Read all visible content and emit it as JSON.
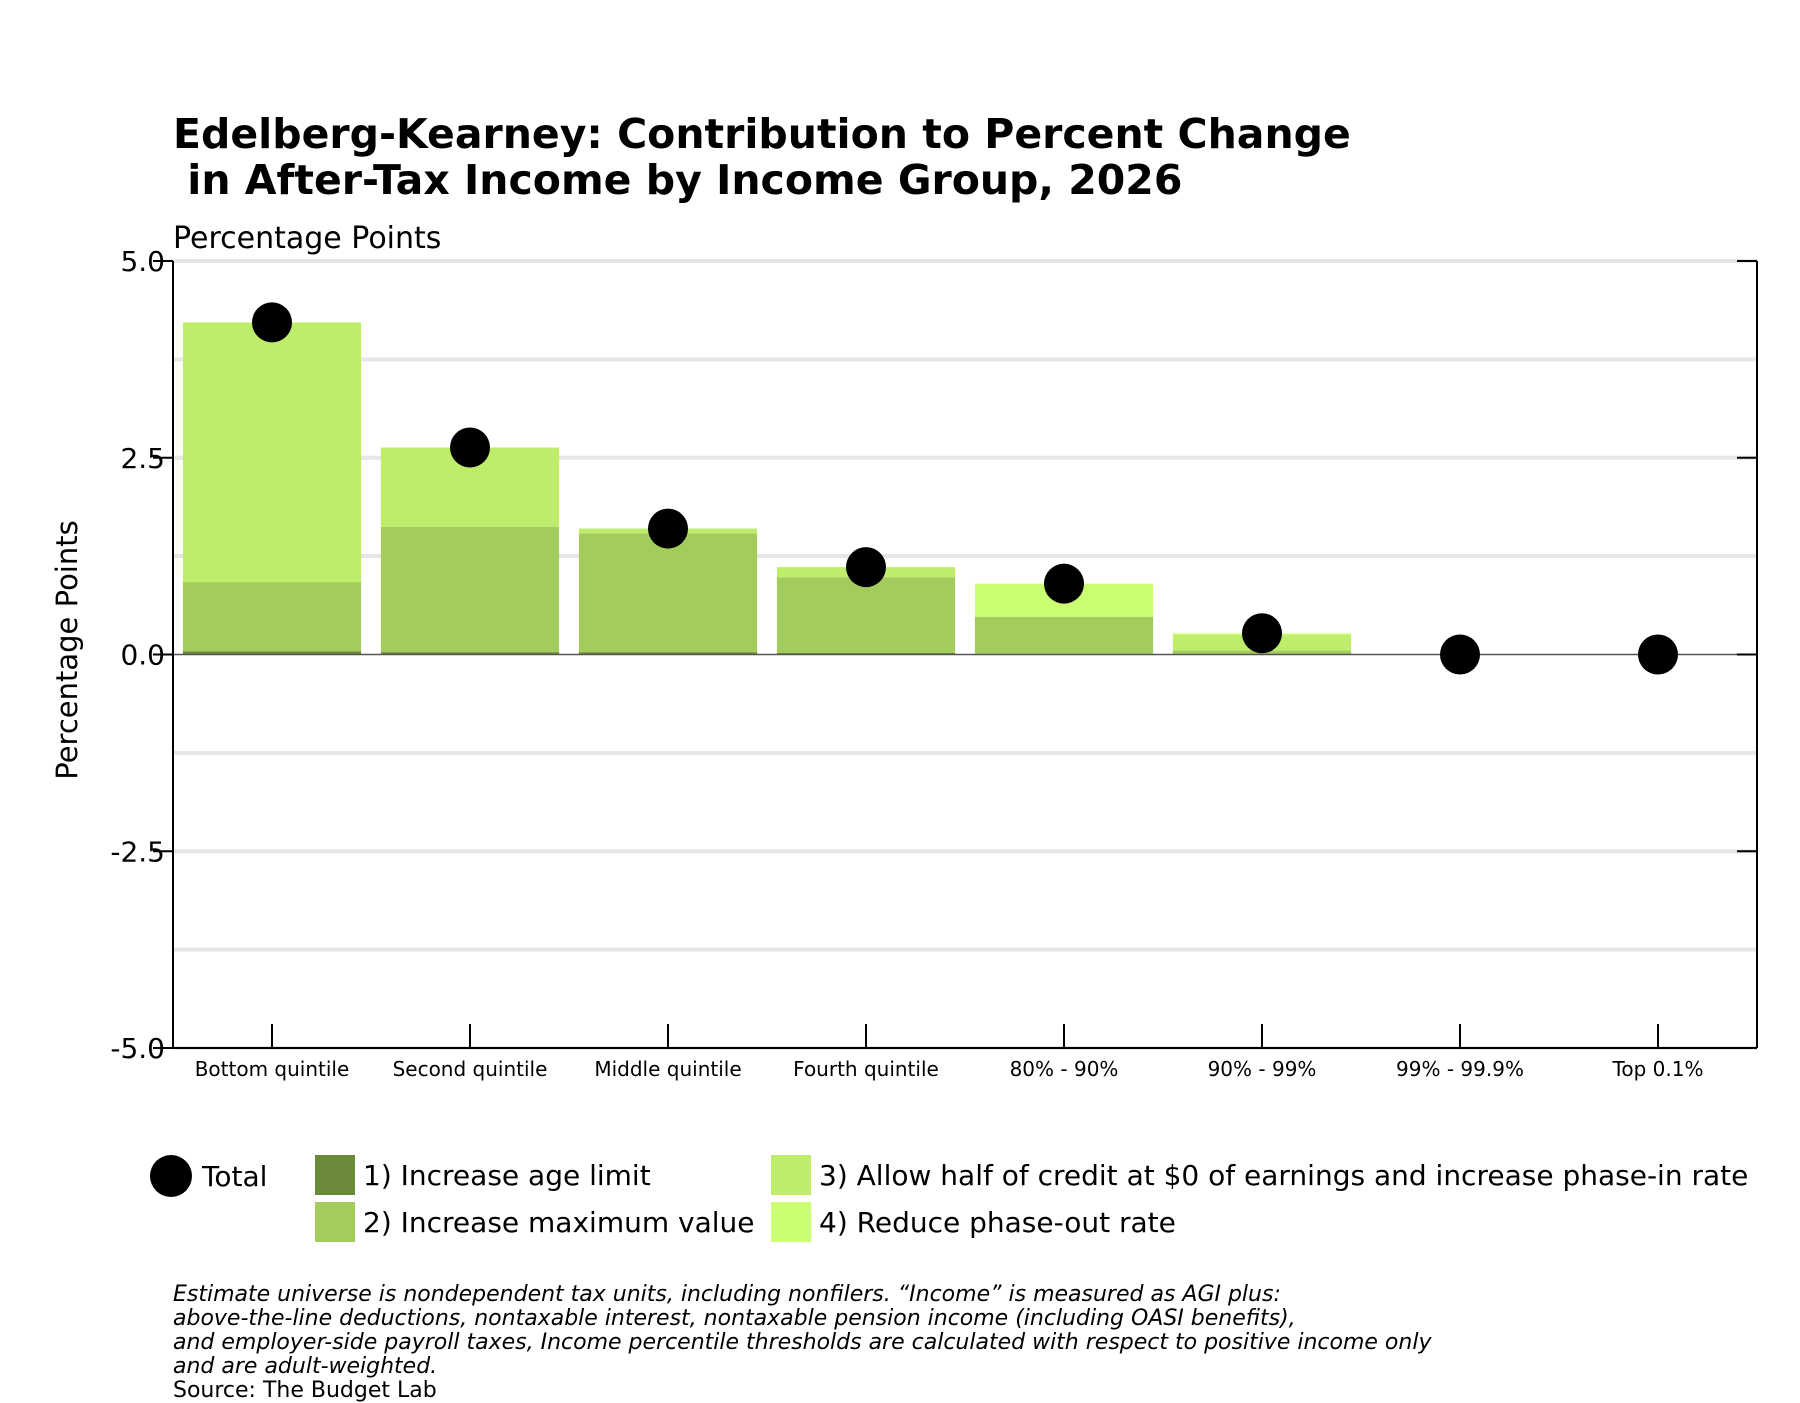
{
  "title": "Edelberg-Kearney: Contribution to Percent Change\n in After-Tax Income by Income Group, 2026",
  "subtitle": "Percentage Points",
  "chart_data": {
    "type": "bar",
    "stacked": true,
    "ylabel": "Percentage Points",
    "xlabel": "",
    "ylim": [
      -5.0,
      5.0
    ],
    "yticks": [
      "5.0",
      "2.5",
      "0.0",
      "-2.5",
      "-5.0"
    ],
    "grid": true,
    "legend_position": "bottom",
    "categories": [
      "Bottom quintile",
      "Second quintile",
      "Middle quintile",
      "Fourth quintile",
      "80% - 90%",
      "90% - 99%",
      "99% - 99.9%",
      "Top 0.1%"
    ],
    "series": [
      {
        "name": "1) Increase age limit",
        "color": "#6b8a3a",
        "values": [
          0.04,
          0.03,
          0.03,
          0.02,
          0.01,
          0.01,
          0.0,
          0.0
        ]
      },
      {
        "name": "2) Increase maximum value",
        "color": "#a3cc5c",
        "values": [
          0.88,
          1.59,
          1.51,
          0.96,
          0.47,
          0.04,
          0.0,
          0.0
        ]
      },
      {
        "name": "3) Allow half of credit at $0 of earnings and increase phase-in rate",
        "color": "#bded6b",
        "values": [
          3.3,
          1.01,
          0.06,
          0.13,
          0.0,
          0.2,
          0.0,
          0.0
        ]
      },
      {
        "name": "4) Reduce phase-out rate",
        "color": "#cbff73",
        "values": [
          0.0,
          0.0,
          0.0,
          0.0,
          0.42,
          0.02,
          0.0,
          0.0
        ]
      }
    ],
    "total": {
      "name": "Total",
      "values": [
        4.22,
        2.63,
        1.6,
        1.11,
        0.9,
        0.27,
        0.0,
        0.0
      ]
    }
  },
  "notes": {
    "lines": [
      "Estimate universe is nondependent tax units, including nonfilers. “Income” is measured as AGI plus:",
      "above-the-line deductions, nontaxable interest, nontaxable pension income (including OASI benefits),",
      "and employer-side payroll taxes, Income percentile thresholds are calculated with respect to positive income only",
      "and are adult-weighted."
    ],
    "source": "Source: The Budget Lab"
  }
}
